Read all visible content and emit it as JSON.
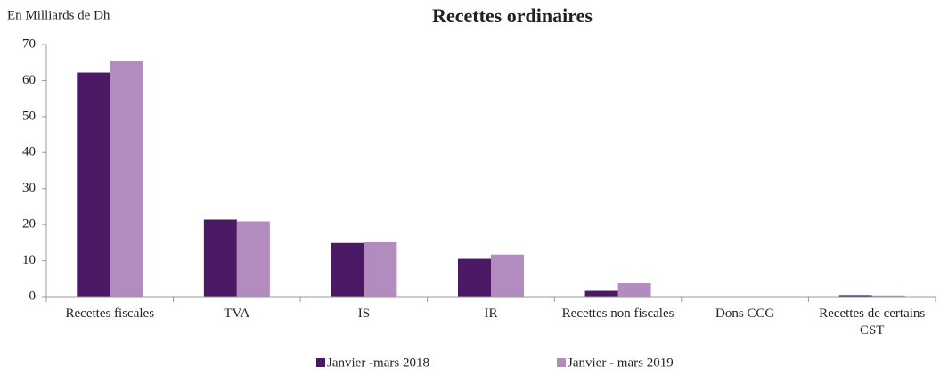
{
  "chart_data": {
    "type": "bar",
    "title": "Recettes ordinaires",
    "y_label": "En Milliards de Dh",
    "categories": [
      "Recettes fiscales",
      "TVA",
      "IS",
      "IR",
      "Recettes non fiscales",
      "Dons CCG",
      "Recettes de certains CST"
    ],
    "series": [
      {
        "name": "Janvier -mars 2018",
        "color": "#4b1863",
        "values": [
          62.2,
          21.4,
          14.9,
          10.5,
          1.6,
          0,
          0.4
        ]
      },
      {
        "name": "Janvier - mars 2019",
        "color": "#b28cbf",
        "values": [
          65.5,
          20.9,
          15.1,
          11.7,
          3.7,
          0,
          0.3
        ]
      }
    ],
    "ylim": [
      0,
      70
    ],
    "yticks": [
      0,
      10,
      20,
      30,
      40,
      50,
      60,
      70
    ],
    "grid": false,
    "legend": "bottom"
  }
}
